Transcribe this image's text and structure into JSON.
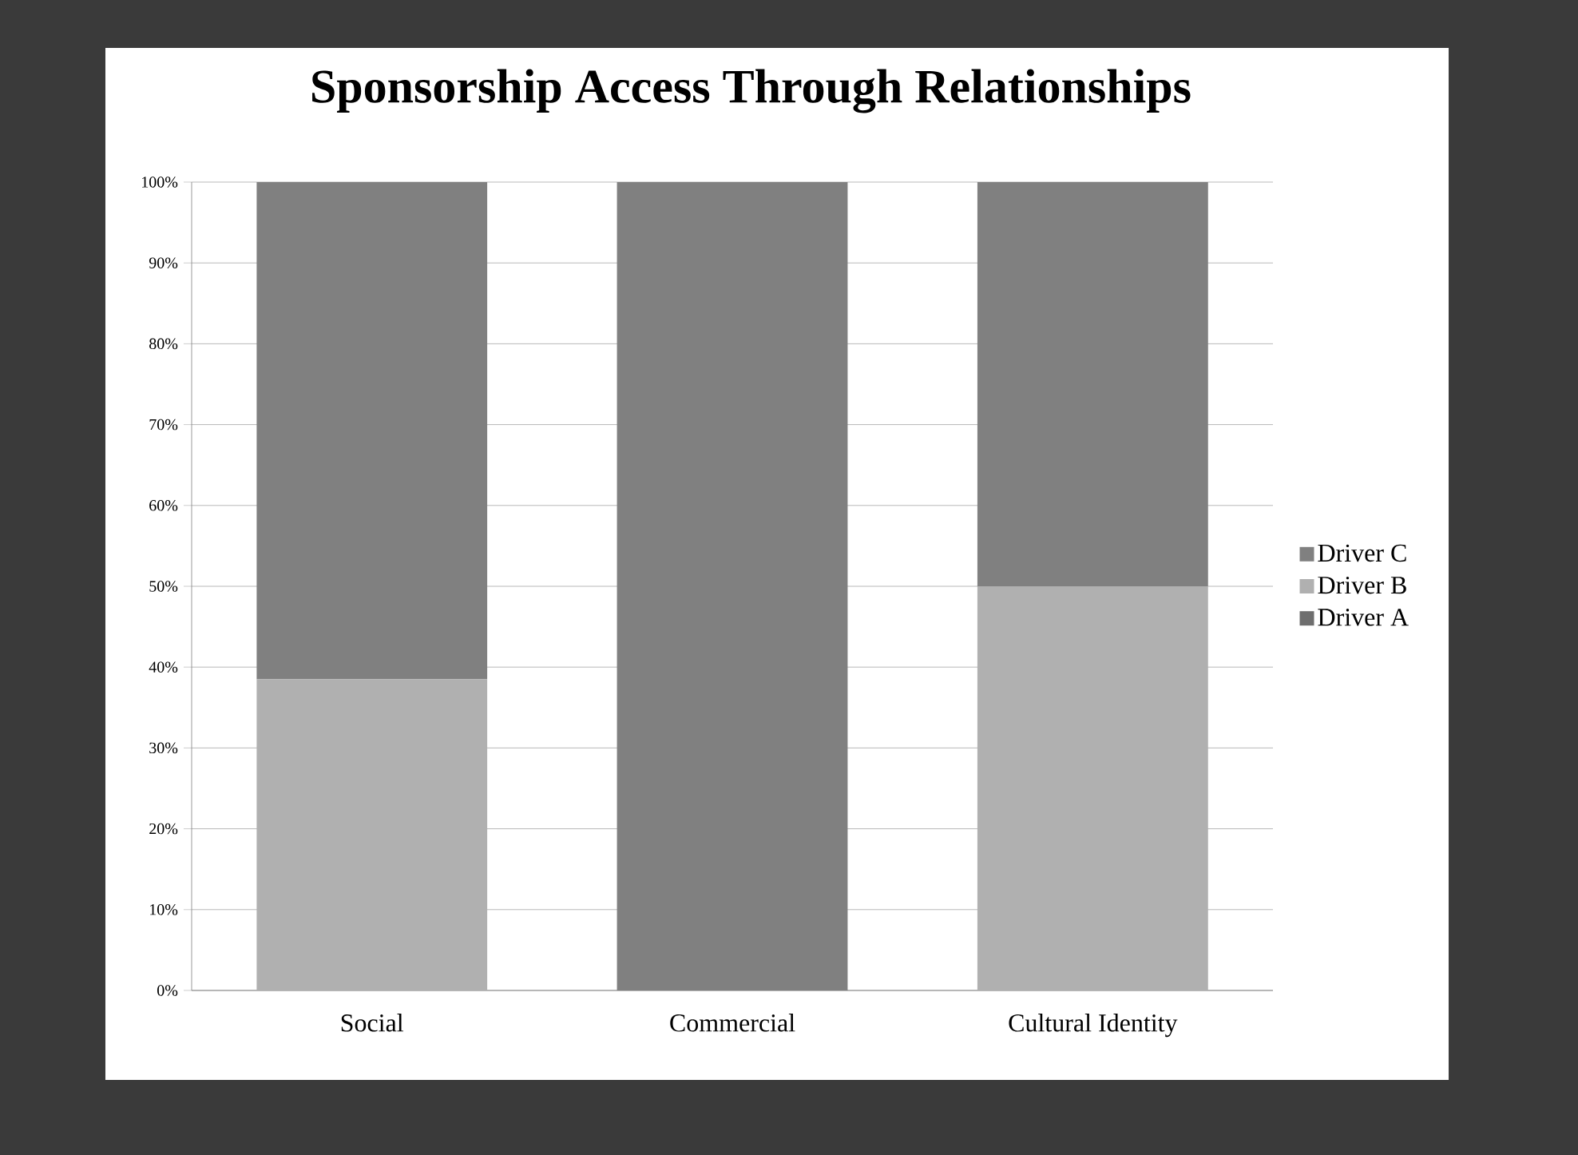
{
  "chart_data": {
    "type": "bar",
    "stacked": true,
    "title": "Sponsorship Access Through Relationships",
    "categories": [
      "Social",
      "Commercial",
      "Cultural Identity"
    ],
    "series": [
      {
        "name": "Driver A",
        "color": "#6e6e6e",
        "values": [
          0,
          0,
          0
        ]
      },
      {
        "name": "Driver B",
        "color": "#b0b0b0",
        "values": [
          38.5,
          0,
          50
        ]
      },
      {
        "name": "Driver C",
        "color": "#808080",
        "values": [
          61.5,
          100,
          50
        ]
      }
    ],
    "ylim": [
      0,
      100
    ],
    "yticks": [
      {
        "value": 0,
        "label": "0%"
      },
      {
        "value": 10,
        "label": "10%"
      },
      {
        "value": 20,
        "label": "20%"
      },
      {
        "value": 30,
        "label": "30%"
      },
      {
        "value": 40,
        "label": "40%"
      },
      {
        "value": 50,
        "label": "50%"
      },
      {
        "value": 60,
        "label": "60%"
      },
      {
        "value": 70,
        "label": "70%"
      },
      {
        "value": 80,
        "label": "80%"
      },
      {
        "value": 90,
        "label": "90%"
      },
      {
        "value": 100,
        "label": "100%"
      }
    ],
    "grid": "y",
    "legend": "right"
  }
}
